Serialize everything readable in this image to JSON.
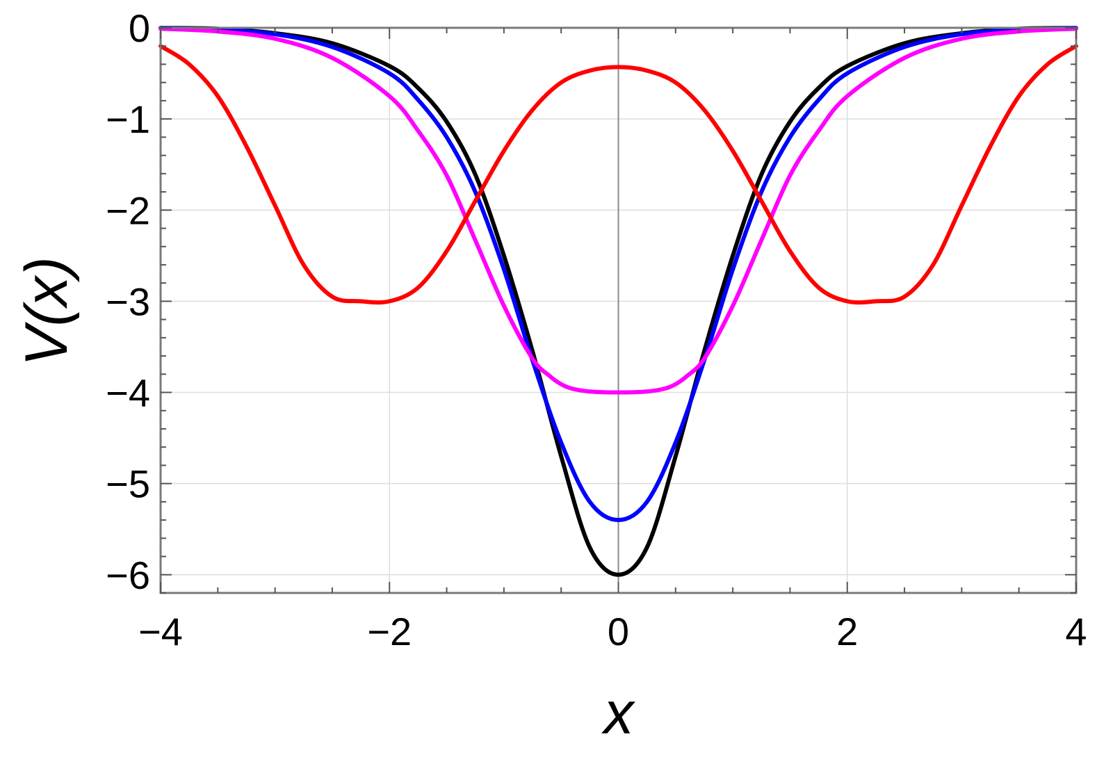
{
  "chart_data": {
    "type": "line",
    "title": "",
    "xlabel": "x",
    "ylabel": "V(x)",
    "xlim": [
      -4,
      4
    ],
    "ylim": [
      -6.2,
      0
    ],
    "xticks": [
      -4,
      -2,
      0,
      2,
      4
    ],
    "xtick_labels": [
      "−4",
      "−2",
      "0",
      "2",
      "4"
    ],
    "yticks": [
      0,
      -1,
      -2,
      -3,
      -4,
      -5,
      -6
    ],
    "ytick_labels": [
      "0",
      "−1",
      "−2",
      "−3",
      "−4",
      "−5",
      "−6"
    ],
    "grid": true,
    "legend": "none",
    "series": [
      {
        "color": "#000000",
        "x": [
          -4.0,
          -3.5,
          -3.0,
          -2.5,
          -2.0,
          -1.75,
          -1.5,
          -1.25,
          -1.0,
          -0.75,
          -0.5,
          -0.25,
          0.0,
          0.25,
          0.5,
          0.75,
          1.0,
          1.25,
          1.5,
          1.75,
          2.0,
          2.5,
          3.0,
          3.5,
          4.0
        ],
        "y": [
          -0.002,
          -0.01,
          -0.06,
          -0.17,
          -0.42,
          -0.66,
          -1.03,
          -1.61,
          -2.5,
          -3.55,
          -4.7,
          -5.7,
          -6.0,
          -5.7,
          -4.7,
          -3.55,
          -2.5,
          -1.61,
          -1.03,
          -0.66,
          -0.42,
          -0.17,
          -0.06,
          -0.01,
          -0.002
        ]
      },
      {
        "color": "#0000ff",
        "x": [
          -4.0,
          -3.5,
          -3.0,
          -2.5,
          -2.0,
          -1.75,
          -1.5,
          -1.25,
          -1.0,
          -0.75,
          -0.5,
          -0.25,
          0.0,
          0.25,
          0.5,
          0.75,
          1.0,
          1.25,
          1.5,
          1.75,
          2.0,
          2.5,
          3.0,
          3.5,
          4.0
        ],
        "y": [
          -0.003,
          -0.02,
          -0.07,
          -0.21,
          -0.5,
          -0.79,
          -1.2,
          -1.8,
          -2.65,
          -3.65,
          -4.55,
          -5.2,
          -5.4,
          -5.2,
          -4.55,
          -3.65,
          -2.65,
          -1.8,
          -1.2,
          -0.79,
          -0.5,
          -0.21,
          -0.07,
          -0.02,
          -0.003
        ]
      },
      {
        "color": "#ff00ff",
        "x": [
          -4.0,
          -3.5,
          -3.0,
          -2.5,
          -2.0,
          -1.75,
          -1.5,
          -1.25,
          -1.0,
          -0.75,
          -0.6,
          -0.5,
          -0.4,
          -0.25,
          0.0,
          0.25,
          0.4,
          0.5,
          0.6,
          0.75,
          1.0,
          1.25,
          1.5,
          1.75,
          2.0,
          2.5,
          3.0,
          3.5,
          4.0
        ],
        "y": [
          -0.01,
          -0.04,
          -0.12,
          -0.33,
          -0.75,
          -1.13,
          -1.62,
          -2.33,
          -3.05,
          -3.63,
          -3.82,
          -3.91,
          -3.96,
          -3.99,
          -4.0,
          -3.99,
          -3.96,
          -3.91,
          -3.82,
          -3.63,
          -3.05,
          -2.33,
          -1.62,
          -1.13,
          -0.75,
          -0.33,
          -0.12,
          -0.04,
          -0.01
        ]
      },
      {
        "color": "#ff0000",
        "x": [
          -4.0,
          -3.75,
          -3.5,
          -3.25,
          -3.0,
          -2.75,
          -2.5,
          -2.25,
          -2.0,
          -1.75,
          -1.5,
          -1.25,
          -1.0,
          -0.75,
          -0.5,
          -0.25,
          0.0,
          0.25,
          0.5,
          0.75,
          1.0,
          1.25,
          1.5,
          1.75,
          2.0,
          2.25,
          2.5,
          2.75,
          3.0,
          3.25,
          3.5,
          3.75,
          4.0
        ],
        "y": [
          -0.2,
          -0.4,
          -0.75,
          -1.3,
          -1.95,
          -2.6,
          -2.95,
          -3.0,
          -3.0,
          -2.85,
          -2.45,
          -1.9,
          -1.35,
          -0.9,
          -0.6,
          -0.47,
          -0.43,
          -0.47,
          -0.6,
          -0.9,
          -1.35,
          -1.9,
          -2.45,
          -2.85,
          -3.0,
          -3.0,
          -2.95,
          -2.6,
          -1.95,
          -1.3,
          -0.75,
          -0.4,
          -0.2
        ]
      }
    ]
  }
}
